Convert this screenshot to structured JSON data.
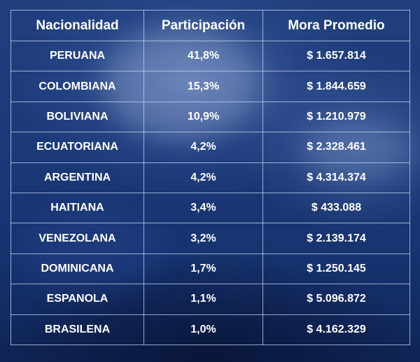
{
  "table": {
    "headers": [
      "Nacionalidad",
      "Participación",
      "Mora Promedio"
    ],
    "rows": [
      [
        "PERUANA",
        "41,8%",
        "$ 1.657.814"
      ],
      [
        "COLOMBIANA",
        "15,3%",
        "$ 1.844.659"
      ],
      [
        "BOLIVIANA",
        "10,9%",
        "$ 1.210.979"
      ],
      [
        "ECUATORIANA",
        "4,2%",
        "$ 2.328.461"
      ],
      [
        "ARGENTINA",
        "4,2%",
        "$ 4.314.374"
      ],
      [
        "HAITIANA",
        "3,4%",
        "$ 433.088"
      ],
      [
        "VENEZOLANA",
        "3,2%",
        "$ 2.139.174"
      ],
      [
        "DOMINICANA",
        "1,7%",
        "$ 1.250.145"
      ],
      [
        "ESPANOLA",
        "1,1%",
        "$ 5.096.872"
      ],
      [
        "BRASILENA",
        "1,0%",
        "$ 4.162.329"
      ]
    ]
  },
  "colors": {
    "background": "#1a3b78",
    "text": "#ffffff",
    "border": "#c8d7f0"
  }
}
